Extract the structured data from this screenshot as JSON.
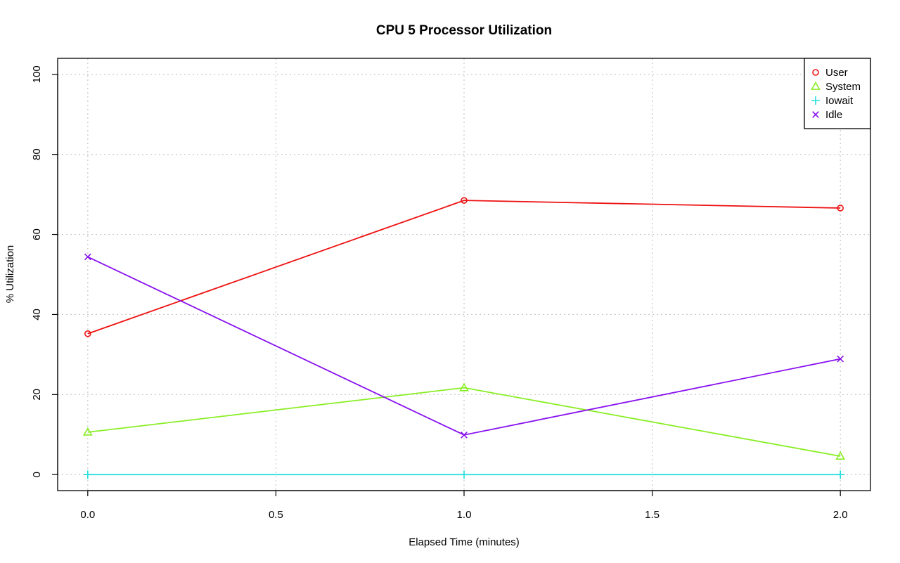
{
  "chart_data": {
    "type": "line",
    "title": "CPU  5  Processor Utilization",
    "xlabel": "Elapsed Time (minutes)",
    "ylabel": "% Utilization",
    "xlim": [
      -0.08,
      2.08
    ],
    "ylim": [
      -4,
      104
    ],
    "x_ticks": [
      0.0,
      0.5,
      1.0,
      1.5,
      2.0
    ],
    "x_tick_labels": [
      "0.0",
      "0.5",
      "1.0",
      "1.5",
      "2.0"
    ],
    "y_ticks": [
      0,
      20,
      40,
      60,
      80,
      100
    ],
    "y_tick_labels": [
      "0",
      "20",
      "40",
      "60",
      "80",
      "100"
    ],
    "grid": true,
    "legend_position": "top-right",
    "x": [
      0.0,
      1.0,
      2.0
    ],
    "series": [
      {
        "name": "User",
        "color": "#ee1111",
        "marker": "circle",
        "values": [
          35.2,
          68.5,
          66.6
        ]
      },
      {
        "name": "System",
        "color": "#88ee22",
        "marker": "triangle",
        "values": [
          10.6,
          21.7,
          4.6
        ]
      },
      {
        "name": "Iowait",
        "color": "#22dddd",
        "marker": "plus",
        "values": [
          0,
          0,
          0
        ]
      },
      {
        "name": "Idle",
        "color": "#8811ee",
        "marker": "cross",
        "values": [
          54.4,
          9.9,
          28.9
        ]
      }
    ]
  }
}
